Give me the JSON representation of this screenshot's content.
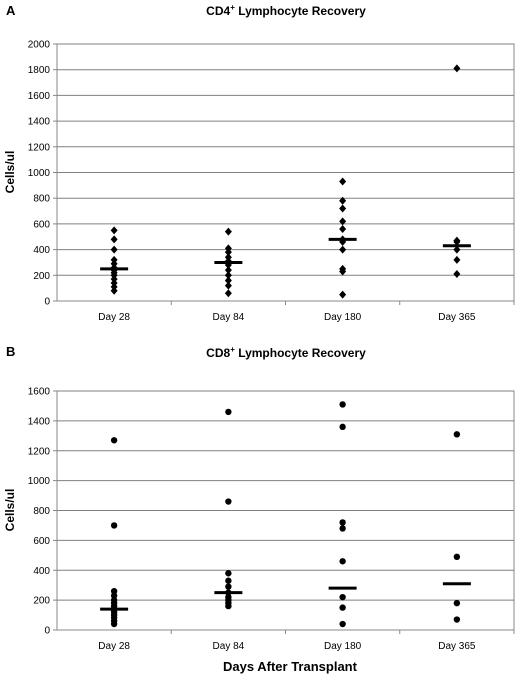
{
  "xlabel": "Days After Transplant",
  "chart_data": [
    {
      "panel": "A",
      "type": "scatter",
      "title": "CD4+ Lymphocyte Recovery",
      "title_main": "CD4",
      "title_sup": "+",
      "title_rest": " Lymphocyte Recovery",
      "ylabel": "Cells/ul",
      "ylim": [
        0,
        2000
      ],
      "yticks": [
        0,
        200,
        400,
        600,
        800,
        1000,
        1200,
        1400,
        1600,
        1800,
        2000
      ],
      "grid": true,
      "marker": "diamond",
      "categories": [
        "Day 28",
        "Day 84",
        "Day 180",
        "Day 365"
      ],
      "points": [
        [
          550,
          480,
          400,
          320,
          290,
          260,
          240,
          220,
          200,
          170,
          140,
          110,
          80
        ],
        [
          540,
          410,
          380,
          340,
          310,
          280,
          240,
          200,
          160,
          120,
          60
        ],
        [
          930,
          780,
          720,
          620,
          560,
          480,
          460,
          400,
          250,
          230,
          50
        ],
        [
          1810,
          470,
          460,
          400,
          320,
          210
        ]
      ],
      "medians": [
        250,
        300,
        480,
        430
      ]
    },
    {
      "panel": "B",
      "type": "scatter",
      "title": "CD8+ Lymphocyte Recovery",
      "title_main": "CD8",
      "title_sup": "+",
      "title_rest": " Lymphocyte Recovery",
      "ylabel": "Cells/ul",
      "ylim": [
        0,
        1600
      ],
      "yticks": [
        0,
        200,
        400,
        600,
        800,
        1000,
        1200,
        1400,
        1600
      ],
      "grid": true,
      "marker": "circle",
      "categories": [
        "Day 28",
        "Day 84",
        "Day 180",
        "Day 365"
      ],
      "points": [
        [
          1270,
          700,
          260,
          230,
          200,
          180,
          160,
          140,
          120,
          100,
          80,
          60,
          40
        ],
        [
          1460,
          860,
          380,
          330,
          290,
          250,
          220,
          200,
          180,
          160
        ],
        [
          1510,
          1360,
          720,
          680,
          460,
          220,
          150,
          40
        ],
        [
          1310,
          490,
          180,
          70
        ]
      ],
      "medians": [
        140,
        250,
        280,
        310
      ]
    }
  ]
}
